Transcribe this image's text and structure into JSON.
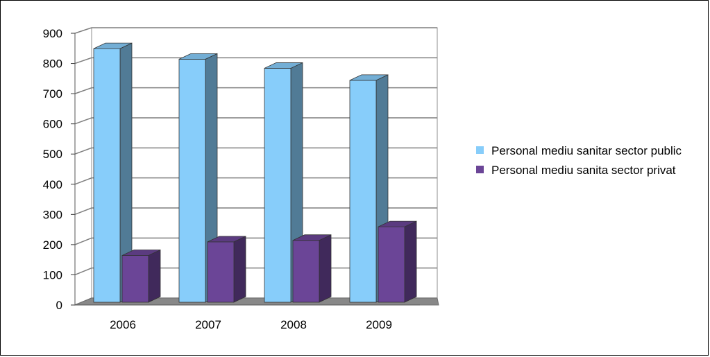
{
  "chart_data": {
    "type": "bar",
    "title": "",
    "xlabel": "",
    "ylabel": "",
    "categories": [
      "2006",
      "2007",
      "2008",
      "2009"
    ],
    "series": [
      {
        "name": "Personal mediu sanitar sector public",
        "values": [
          840,
          805,
          775,
          735
        ],
        "color": "#87cdfa"
      },
      {
        "name": "Personal mediu sanita sector privat",
        "values": [
          155,
          200,
          205,
          250
        ],
        "color": "#6b4597"
      }
    ],
    "ylim": [
      0,
      900
    ],
    "yticks": [
      0,
      100,
      200,
      300,
      400,
      500,
      600,
      700,
      800,
      900
    ],
    "grid": true,
    "legend_position": "right",
    "style": "3d-column"
  }
}
